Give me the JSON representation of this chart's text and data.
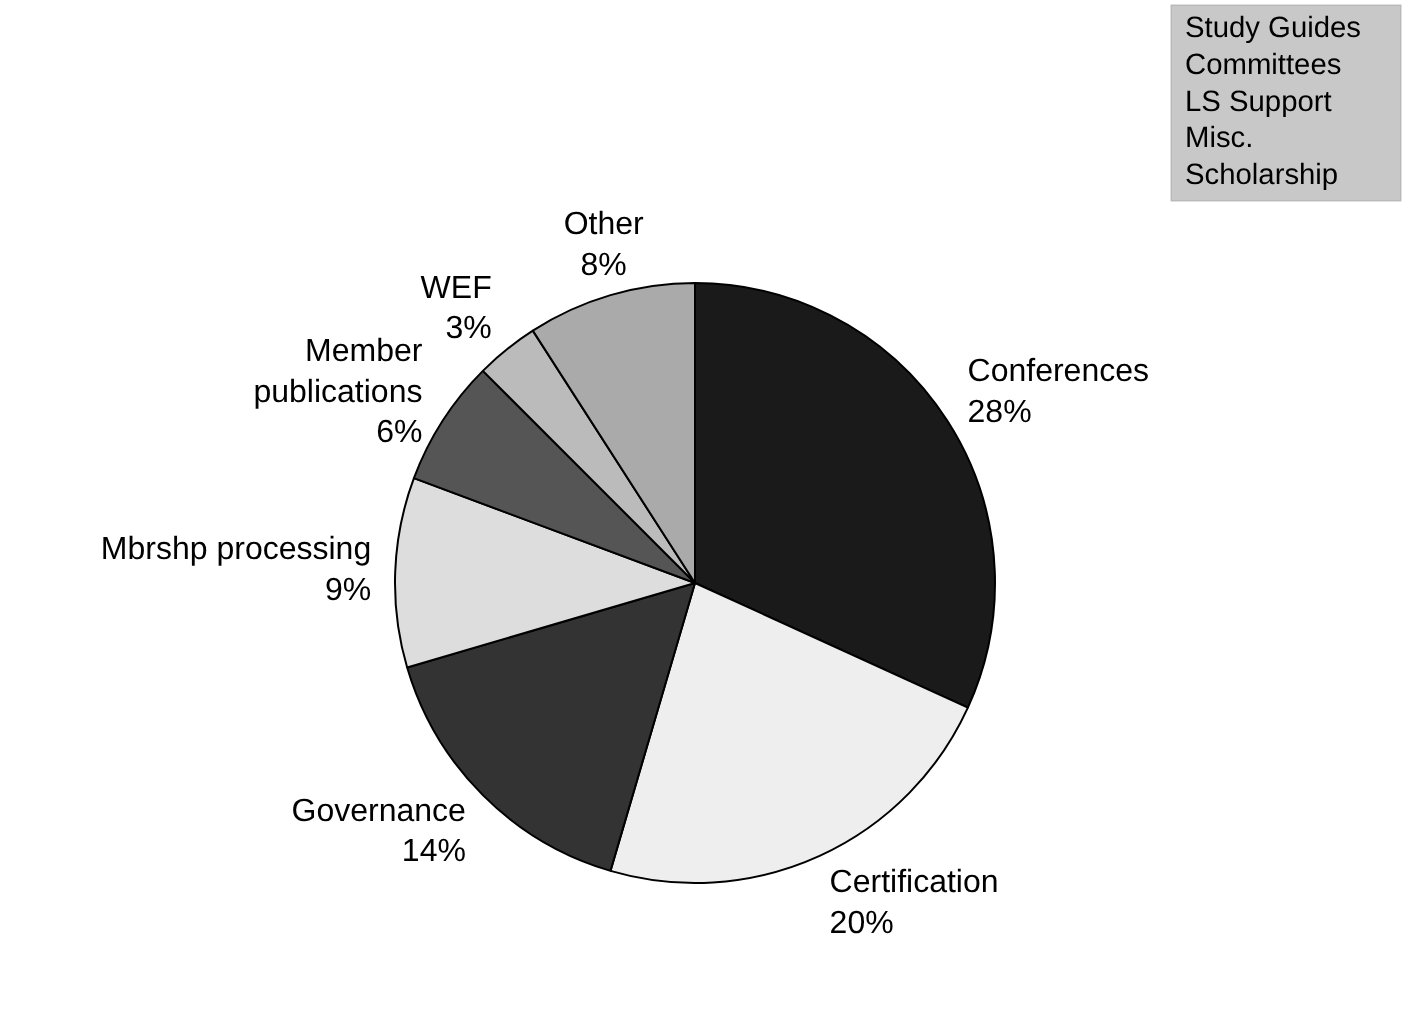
{
  "chart_data": {
    "type": "pie",
    "categories": [
      "Conferences",
      "Certification",
      "Governance",
      "Mbrshp processing",
      "Member publications",
      "WEF",
      "Other"
    ],
    "values": [
      28,
      20,
      14,
      9,
      6,
      3,
      8
    ],
    "value_labels": [
      "28%",
      "20%",
      "14%",
      "9%",
      "6%",
      "3%",
      "8%"
    ],
    "colors": [
      "#1a1a1a",
      "#eeeeee",
      "#333333",
      "#dddddd",
      "#555555",
      "#bbbbbb",
      "#aaaaaa"
    ],
    "annotations": [
      "Study Guides\nCommittees\nLS Support\nMisc.\nScholarship"
    ]
  }
}
